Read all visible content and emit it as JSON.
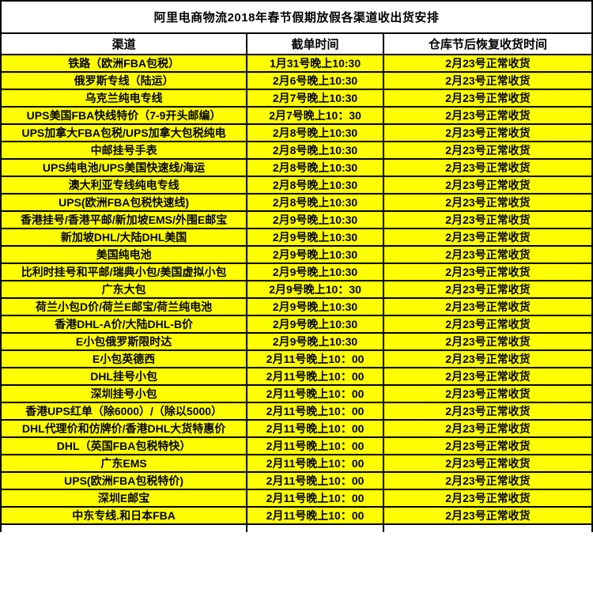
{
  "title": "阿里电商物流2018年春节假期放假各渠道收出货安排",
  "colors": {
    "row_background": "#ffff00",
    "header_background": "#ffffff",
    "border": "#000000",
    "text": "#000000"
  },
  "chart_data": {
    "type": "table",
    "title": "阿里电商物流2018年春节假期放假各渠道收出货安排",
    "headers": [
      "渠道",
      "截单时间",
      "仓库节后恢复收货时间"
    ],
    "rows": [
      [
        "铁路（欧洲FBA包税）",
        "1月31号晚上10:30",
        "2月23号正常收货"
      ],
      [
        "俄罗斯专线（陆运）",
        "2月6号晚上10:30",
        "2月23号正常收货"
      ],
      [
        "乌克兰纯电专线",
        "2月7号晚上10:30",
        "2月23号正常收货"
      ],
      [
        "UPS美国FBA快线特价（7-9开头邮编）",
        "2月7号晚上10：30",
        "2月23号正常收货"
      ],
      [
        "UPS加拿大FBA包税/UPS加拿大包税纯电",
        "2月8号晚上10:30",
        "2月23号正常收货"
      ],
      [
        "中邮挂号手表",
        "2月8号晚上10:30",
        "2月23号正常收货"
      ],
      [
        "UPS纯电池/UPS美国快速线/海运",
        "2月8号晚上10:30",
        "2月23号正常收货"
      ],
      [
        "澳大利亚专线纯电专线",
        "2月8号晚上10:30",
        "2月23号正常收货"
      ],
      [
        "UPS(欧洲FBA包税快速线)",
        "2月8号晚上10:30",
        "2月23号正常收货"
      ],
      [
        "香港挂号/香港平邮/新加坡EMS/外围E邮宝",
        "2月9号晚上10:30",
        "2月23号正常收货"
      ],
      [
        "新加坡DHL/大陆DHL美国",
        "2月9号晚上10:30",
        "2月23号正常收货"
      ],
      [
        "美国纯电池",
        "2月9号晚上10:30",
        "2月23号正常收货"
      ],
      [
        "比利时挂号和平邮/瑞典小包/美国虚拟小包",
        "2月9号晚上10:30",
        "2月23号正常收货"
      ],
      [
        "广东大包",
        "2月9号晚上10：30",
        "2月23号正常收货"
      ],
      [
        "荷兰小包D价/荷兰E邮宝/荷兰纯电池",
        "2月9号晚上10:30",
        "2月23号正常收货"
      ],
      [
        "香港DHL-A价/大陆DHL-B价",
        "2月9号晚上10:30",
        "2月23号正常收货"
      ],
      [
        "E小包俄罗斯限时达",
        "2月9号晚上10:30",
        "2月23号正常收货"
      ],
      [
        "E小包英德西",
        "2月11号晚上10：00",
        "2月23号正常收货"
      ],
      [
        "DHL挂号小包",
        "2月11号晚上10：00",
        "2月23号正常收货"
      ],
      [
        "深圳挂号小包",
        "2月11号晚上10：00",
        "2月23号正常收货"
      ],
      [
        "香港UPS红单（除6000）/（除以5000）",
        "2月11号晚上10：00",
        "2月23号正常收货"
      ],
      [
        "DHL代理价和仿牌价/香港DHL大货特惠价",
        "2月11号晚上10：00",
        "2月23号正常收货"
      ],
      [
        "DHL（英国FBA包税特快）",
        "2月11号晚上10：00",
        "2月23号正常收货"
      ],
      [
        "广东EMS",
        "2月11号晚上10：00",
        "2月23号正常收货"
      ],
      [
        "UPS(欧洲FBA包税特价)",
        "2月11号晚上10：00",
        "2月23号正常收货"
      ],
      [
        "深圳E邮宝",
        "2月11号晚上10：00",
        "2月23号正常收货"
      ],
      [
        "中东专线.和日本FBA",
        "2月11号晚上10：00",
        "2月23号正常收货"
      ]
    ]
  }
}
